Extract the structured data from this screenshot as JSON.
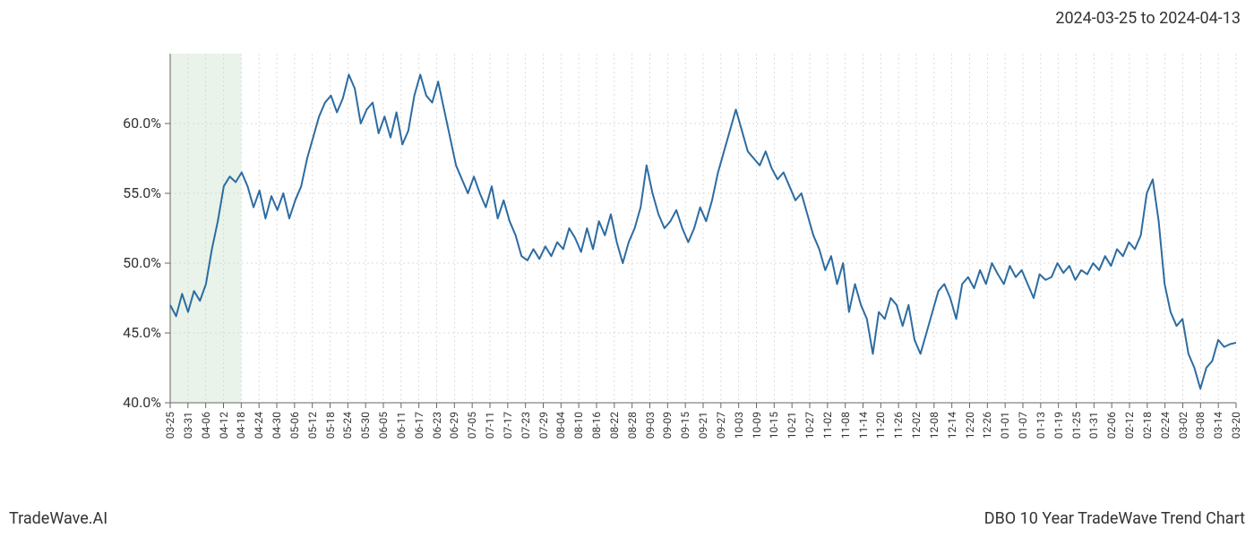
{
  "header": {
    "date_range": "2024-03-25 to 2024-04-13"
  },
  "footer": {
    "left": "TradeWave.AI",
    "right": "DBO 10 Year TradeWave Trend Chart"
  },
  "chart": {
    "type": "line",
    "background_color": "#ffffff",
    "line_color": "#2d6ca2",
    "line_width": 2,
    "grid_color": "#d0d0d0",
    "axis_color": "#666666",
    "highlight_fill": "#d4e8d4",
    "highlight_opacity": 0.5,
    "highlight_range": [
      0,
      4
    ],
    "ylim": [
      40,
      65
    ],
    "ytick_step": 5,
    "y_labels": [
      "40.0%",
      "45.0%",
      "50.0%",
      "55.0%",
      "60.0%"
    ],
    "y_values": [
      40,
      45,
      50,
      55,
      60
    ],
    "x_labels": [
      "03-25",
      "03-31",
      "04-06",
      "04-12",
      "04-18",
      "04-24",
      "04-30",
      "05-06",
      "05-12",
      "05-18",
      "05-24",
      "05-30",
      "06-05",
      "06-11",
      "06-17",
      "06-23",
      "06-29",
      "07-05",
      "07-11",
      "07-17",
      "07-23",
      "07-29",
      "08-04",
      "08-10",
      "08-16",
      "08-22",
      "08-28",
      "09-03",
      "09-09",
      "09-15",
      "09-21",
      "09-27",
      "10-03",
      "10-09",
      "10-15",
      "10-21",
      "10-27",
      "11-02",
      "11-08",
      "11-14",
      "11-20",
      "11-26",
      "12-02",
      "12-08",
      "12-14",
      "12-20",
      "12-26",
      "01-01",
      "01-07",
      "01-13",
      "01-19",
      "01-25",
      "01-31",
      "02-06",
      "02-12",
      "02-18",
      "02-24",
      "03-02",
      "03-08",
      "03-14",
      "03-20"
    ],
    "x_tick_step": 1,
    "series": [
      47.0,
      46.2,
      47.8,
      46.5,
      48.0,
      47.3,
      48.5,
      51.0,
      53.0,
      55.5,
      56.2,
      55.8,
      56.5,
      55.5,
      54.0,
      55.2,
      53.2,
      54.8,
      53.8,
      55.0,
      53.2,
      54.5,
      55.5,
      57.5,
      59.0,
      60.5,
      61.5,
      62.0,
      60.8,
      61.8,
      63.5,
      62.5,
      60.0,
      61.0,
      61.5,
      59.3,
      60.5,
      59.0,
      60.8,
      58.5,
      59.5,
      62.0,
      63.5,
      62.0,
      61.5,
      63.0,
      61.0,
      59.0,
      57.0,
      56.0,
      55.0,
      56.2,
      55.0,
      54.0,
      55.5,
      53.2,
      54.5,
      53.0,
      52.0,
      50.5,
      50.2,
      51.0,
      50.3,
      51.2,
      50.5,
      51.5,
      51.0,
      52.5,
      51.8,
      50.8,
      52.5,
      51.0,
      53.0,
      52.0,
      53.5,
      51.5,
      50.0,
      51.5,
      52.5,
      54.0,
      57.0,
      55.0,
      53.5,
      52.5,
      53.0,
      53.8,
      52.5,
      51.5,
      52.5,
      54.0,
      53.0,
      54.5,
      56.5,
      58.0,
      59.5,
      61.0,
      59.5,
      58.0,
      57.5,
      57.0,
      58.0,
      56.8,
      56.0,
      56.5,
      55.5,
      54.5,
      55.0,
      53.5,
      52.0,
      51.0,
      49.5,
      50.5,
      48.5,
      50.0,
      46.5,
      48.5,
      47.0,
      46.0,
      43.5,
      46.5,
      46.0,
      47.5,
      47.0,
      45.5,
      47.0,
      44.5,
      43.5,
      45.0,
      46.5,
      48.0,
      48.5,
      47.5,
      46.0,
      48.5,
      49.0,
      48.2,
      49.5,
      48.5,
      50.0,
      49.2,
      48.5,
      49.8,
      49.0,
      49.5,
      48.5,
      47.5,
      49.2,
      48.8,
      49.0,
      50.0,
      49.3,
      49.8,
      48.8,
      49.5,
      49.2,
      50.0,
      49.5,
      50.5,
      49.8,
      51.0,
      50.5,
      51.5,
      51.0,
      52.0,
      55.0,
      56.0,
      53.0,
      48.5,
      46.5,
      45.5,
      46.0,
      43.5,
      42.5,
      41.0,
      42.5,
      43.0,
      44.5,
      44.0,
      44.2,
      44.3
    ],
    "label_fontsize": 16,
    "x_label_fontsize": 12
  }
}
